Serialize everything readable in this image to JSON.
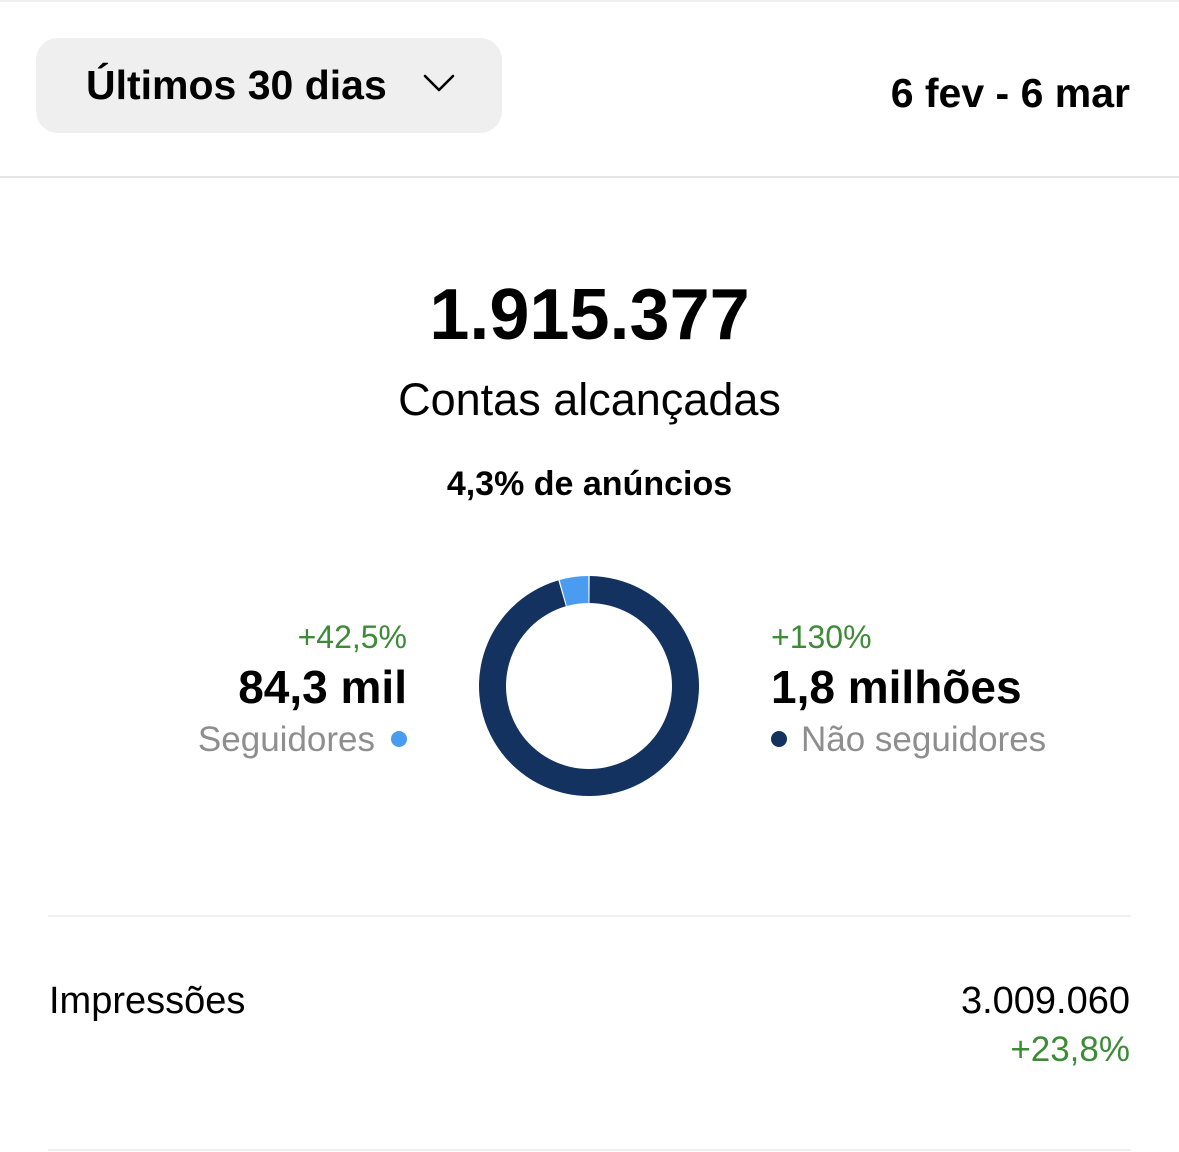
{
  "header": {
    "period_label": "Últimos 30 dias",
    "period_icon": "chevron-down-icon",
    "date_range": "6 fev - 6 mar"
  },
  "reach": {
    "value": "1.915.377",
    "label": "Contas alcançadas",
    "ads_note": "4,3% de anúncios"
  },
  "breakdown": {
    "followers": {
      "delta": "+42,5%",
      "value": "84,3 mil",
      "label": "Seguidores",
      "color": "#4a9cf0"
    },
    "non_followers": {
      "delta": "+130%",
      "value": "1,8 milhões",
      "label": "Não seguidores",
      "color": "#14325f"
    }
  },
  "impressions": {
    "label": "Impressões",
    "value": "3.009.060",
    "delta": "+23,8%"
  },
  "colors": {
    "positive": "#3d8b37",
    "followers": "#4a9cf0",
    "non_followers": "#14325f",
    "button_bg": "#efefef"
  },
  "chart_data": {
    "type": "pie",
    "style": "donut",
    "categories": [
      "Seguidores",
      "Não seguidores"
    ],
    "values": [
      84300,
      1831077
    ],
    "colors": [
      "#4a9cf0",
      "#14325f"
    ]
  }
}
